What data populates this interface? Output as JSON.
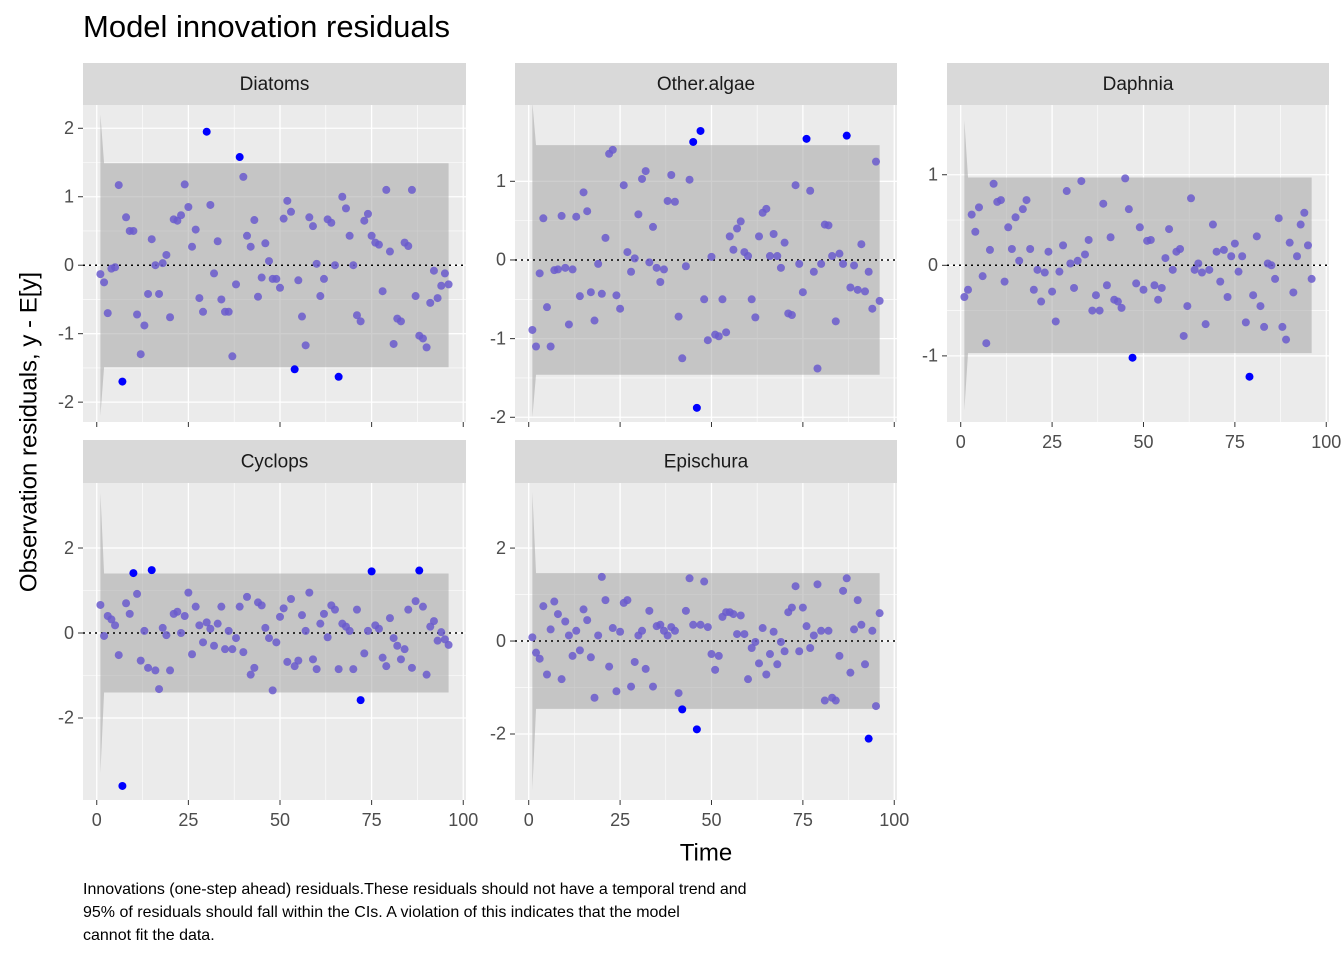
{
  "title": "Model innovation residuals",
  "y_label": "Observation residuals, y - E[y]",
  "x_label": "Time",
  "caption": [
    "Innovations (one-step ahead) residuals.These residuals should not have a temporal trend and",
    "95% of residuals should fall within the CIs. A violation of this indicates that the model",
    "cannot fit the data."
  ],
  "chart_data": [
    {
      "type": "scatter",
      "title": "Diatoms",
      "color": "#6a5acd",
      "outside_color": "#0000ff",
      "grid": true,
      "hline": 0,
      "xlim": [
        -3.75,
        100.75
      ],
      "xticks": [
        0,
        25,
        50,
        75,
        100
      ],
      "ylim": [
        -2.29,
        2.34
      ],
      "yticks": [
        -2,
        -1,
        0,
        1,
        2
      ],
      "band": {
        "x": [
          1,
          2,
          96
        ],
        "upper": [
          2.2,
          1.49,
          1.49
        ],
        "lower": [
          -2.2,
          -1.49,
          -1.49
        ]
      },
      "x": [
        1,
        2,
        3,
        4,
        5,
        6,
        7,
        8,
        9,
        10,
        11,
        12,
        13,
        14,
        15,
        16,
        17,
        18,
        19,
        20,
        21,
        22,
        23,
        24,
        25,
        26,
        27,
        28,
        29,
        30,
        31,
        32,
        33,
        34,
        35,
        36,
        37,
        38,
        39,
        40,
        41,
        42,
        43,
        44,
        45,
        46,
        47,
        48,
        49,
        50,
        51,
        52,
        53,
        54,
        55,
        56,
        57,
        58,
        59,
        60,
        61,
        62,
        63,
        64,
        65,
        66,
        67,
        68,
        69,
        70,
        71,
        72,
        73,
        74,
        75,
        76,
        77,
        78,
        79,
        80,
        81,
        82,
        83,
        84,
        85,
        86,
        87,
        88,
        89,
        90,
        91,
        92,
        93,
        94,
        95,
        96
      ],
      "values": [
        -0.13,
        -0.25,
        -0.7,
        -0.05,
        -0.03,
        1.17,
        -1.7,
        0.7,
        0.5,
        0.5,
        -0.72,
        -1.3,
        -0.88,
        -0.42,
        0.38,
        0.0,
        -0.42,
        0.03,
        0.15,
        -0.76,
        0.67,
        0.65,
        0.73,
        1.18,
        0.85,
        0.27,
        0.52,
        -0.48,
        -0.68,
        1.95,
        0.88,
        -0.12,
        0.35,
        -0.5,
        -0.68,
        -0.68,
        -1.33,
        -0.28,
        1.58,
        1.29,
        0.43,
        0.27,
        0.66,
        -0.46,
        -0.18,
        0.32,
        0.06,
        -0.2,
        -0.2,
        -0.33,
        0.68,
        0.94,
        0.78,
        -1.52,
        -0.22,
        -0.75,
        -1.17,
        0.7,
        0.57,
        0.02,
        -0.45,
        -0.2,
        0.67,
        0.62,
        0.0,
        -1.63,
        1.0,
        0.83,
        0.43,
        0.0,
        -0.73,
        -0.82,
        0.65,
        0.75,
        0.43,
        0.33,
        0.3,
        -0.38,
        1.1,
        0.2,
        -1.15,
        -0.78,
        -0.82,
        0.33,
        0.28,
        1.1,
        -0.45,
        -1.03,
        -1.07,
        -1.2,
        -0.55,
        -0.08,
        -0.48,
        -0.3,
        -0.12,
        -0.28
      ]
    },
    {
      "type": "scatter",
      "title": "Other.algae",
      "color": "#6a5acd",
      "outside_color": "#0000ff",
      "grid": true,
      "hline": 0,
      "xlim": [
        -3.75,
        100.75
      ],
      "xticks": [
        0,
        25,
        50,
        75,
        100
      ],
      "ylim": [
        -2.06,
        1.97
      ],
      "yticks": [
        -2,
        -1,
        0,
        1
      ],
      "band": {
        "x": [
          1,
          2,
          96
        ],
        "upper": [
          2.0,
          1.46,
          1.46
        ],
        "lower": [
          -2.0,
          -1.46,
          -1.46
        ]
      },
      "x": [
        1,
        2,
        3,
        4,
        5,
        6,
        7,
        8,
        9,
        10,
        11,
        12,
        13,
        14,
        15,
        16,
        17,
        18,
        19,
        20,
        21,
        22,
        23,
        24,
        25,
        26,
        27,
        28,
        29,
        30,
        31,
        32,
        33,
        34,
        35,
        36,
        37,
        38,
        39,
        40,
        41,
        42,
        43,
        44,
        45,
        46,
        47,
        48,
        49,
        50,
        51,
        52,
        53,
        54,
        55,
        56,
        57,
        58,
        59,
        60,
        61,
        62,
        63,
        64,
        65,
        66,
        67,
        68,
        69,
        70,
        71,
        72,
        73,
        74,
        75,
        76,
        77,
        78,
        79,
        80,
        81,
        82,
        83,
        84,
        85,
        86,
        87,
        88,
        89,
        90,
        91,
        92,
        93,
        94,
        95,
        96
      ],
      "values": [
        -0.89,
        -1.1,
        -0.17,
        0.53,
        -0.6,
        -1.1,
        -0.13,
        -0.12,
        0.56,
        -0.1,
        -0.82,
        -0.12,
        0.55,
        -0.46,
        0.86,
        0.62,
        -0.41,
        -0.77,
        -0.05,
        -0.43,
        0.28,
        1.35,
        1.4,
        -0.45,
        -0.62,
        0.95,
        0.1,
        -0.15,
        0.02,
        0.58,
        1.03,
        1.13,
        -0.03,
        0.42,
        -0.1,
        -0.28,
        -0.12,
        0.75,
        1.08,
        0.74,
        -0.72,
        -1.25,
        -0.08,
        1.02,
        1.5,
        -1.88,
        1.64,
        -0.5,
        -1.02,
        0.04,
        -0.95,
        -0.97,
        -0.5,
        -0.92,
        0.3,
        0.13,
        0.4,
        0.49,
        0.1,
        0.05,
        -0.5,
        -0.73,
        0.3,
        0.6,
        0.65,
        0.05,
        0.33,
        0.05,
        -0.1,
        0.22,
        -0.68,
        -0.7,
        0.95,
        -0.05,
        -0.41,
        1.54,
        0.88,
        -0.15,
        -1.38,
        -0.05,
        0.45,
        0.44,
        0.05,
        -0.78,
        0.08,
        -0.05,
        1.58,
        -0.35,
        -0.07,
        -0.38,
        0.2,
        -0.4,
        -0.15,
        -0.62,
        1.25,
        -0.52
      ]
    },
    {
      "type": "scatter",
      "title": "Daphnia",
      "color": "#6a5acd",
      "outside_color": "#0000ff",
      "grid": true,
      "hline": 0,
      "xlim": [
        -3.75,
        100.75
      ],
      "xticks": [
        0,
        25,
        50,
        75,
        100
      ],
      "ylim": [
        -1.73,
        1.77
      ],
      "yticks": [
        -1,
        0,
        1
      ],
      "band": {
        "x": [
          1,
          2,
          96
        ],
        "upper": [
          1.6,
          0.97,
          0.97
        ],
        "lower": [
          -1.6,
          -0.97,
          -0.97
        ]
      },
      "x": [
        1,
        2,
        3,
        4,
        5,
        6,
        7,
        8,
        9,
        10,
        11,
        12,
        13,
        14,
        15,
        16,
        17,
        18,
        19,
        20,
        21,
        22,
        23,
        24,
        25,
        26,
        27,
        28,
        29,
        30,
        31,
        32,
        33,
        34,
        35,
        36,
        37,
        38,
        39,
        40,
        41,
        42,
        43,
        44,
        45,
        46,
        47,
        48,
        49,
        50,
        51,
        52,
        53,
        54,
        55,
        56,
        57,
        58,
        59,
        60,
        61,
        62,
        63,
        64,
        65,
        66,
        67,
        68,
        69,
        70,
        71,
        72,
        73,
        74,
        75,
        76,
        77,
        78,
        79,
        80,
        81,
        82,
        83,
        84,
        85,
        86,
        87,
        88,
        89,
        90,
        91,
        92,
        93,
        94,
        95,
        96
      ],
      "values": [
        -0.35,
        -0.27,
        0.56,
        0.37,
        0.64,
        -0.12,
        -0.86,
        0.17,
        0.9,
        0.7,
        0.72,
        -0.18,
        0.42,
        0.18,
        0.53,
        0.05,
        0.62,
        0.72,
        0.18,
        -0.27,
        -0.05,
        -0.4,
        -0.08,
        0.15,
        -0.29,
        -0.62,
        -0.07,
        0.22,
        0.82,
        0.02,
        -0.25,
        0.05,
        0.93,
        0.12,
        0.28,
        -0.5,
        -0.33,
        -0.5,
        0.68,
        -0.22,
        0.31,
        -0.38,
        -0.4,
        -0.47,
        0.96,
        0.62,
        -1.02,
        -0.2,
        0.42,
        -0.27,
        0.27,
        0.28,
        -0.22,
        -0.38,
        -0.25,
        0.08,
        0.4,
        -0.05,
        0.15,
        0.18,
        -0.78,
        -0.45,
        0.74,
        -0.05,
        0.02,
        -0.08,
        -0.65,
        -0.05,
        0.45,
        0.15,
        -0.18,
        0.17,
        -0.35,
        0.1,
        0.24,
        -0.07,
        0.1,
        -0.63,
        -1.23,
        -0.33,
        0.32,
        -0.45,
        -0.68,
        0.02,
        0.0,
        -0.15,
        0.52,
        -0.68,
        -0.82,
        0.25,
        -0.3,
        0.1,
        0.45,
        0.58,
        0.22,
        -0.15
      ]
    },
    {
      "type": "scatter",
      "title": "Cyclops",
      "color": "#6a5acd",
      "outside_color": "#0000ff",
      "grid": true,
      "hline": 0,
      "xlim": [
        -3.75,
        100.75
      ],
      "xticks": [
        0,
        25,
        50,
        75,
        100
      ],
      "ylim": [
        -3.93,
        3.53
      ],
      "yticks": [
        -2,
        0,
        2
      ],
      "band": {
        "x": [
          1,
          2,
          96
        ],
        "upper": [
          3.3,
          1.4,
          1.4
        ],
        "lower": [
          -3.3,
          -1.4,
          -1.4
        ]
      },
      "x": [
        1,
        2,
        3,
        4,
        5,
        6,
        7,
        8,
        9,
        10,
        11,
        12,
        13,
        14,
        15,
        16,
        17,
        18,
        19,
        20,
        21,
        22,
        23,
        24,
        25,
        26,
        27,
        28,
        29,
        30,
        31,
        32,
        33,
        34,
        35,
        36,
        37,
        38,
        39,
        40,
        41,
        42,
        43,
        44,
        45,
        46,
        47,
        48,
        49,
        50,
        51,
        52,
        53,
        54,
        55,
        56,
        57,
        58,
        59,
        60,
        61,
        62,
        63,
        64,
        65,
        66,
        67,
        68,
        69,
        70,
        71,
        72,
        73,
        74,
        75,
        76,
        77,
        78,
        79,
        80,
        81,
        82,
        83,
        84,
        85,
        86,
        87,
        88,
        89,
        90,
        91,
        92,
        93,
        94,
        95,
        96
      ],
      "values": [
        0.66,
        -0.07,
        0.4,
        0.32,
        0.18,
        -0.52,
        -3.6,
        0.7,
        0.45,
        1.41,
        0.92,
        -0.65,
        0.05,
        -0.82,
        1.48,
        -0.88,
        -1.32,
        0.12,
        -0.05,
        -0.88,
        0.45,
        0.5,
        0.0,
        0.4,
        0.95,
        -0.5,
        0.62,
        0.18,
        -0.22,
        0.25,
        0.1,
        -0.3,
        0.22,
        0.62,
        -0.38,
        0.05,
        -0.38,
        -0.12,
        0.62,
        -0.45,
        0.85,
        -0.98,
        -0.82,
        0.72,
        0.65,
        0.12,
        -0.12,
        -1.35,
        -0.22,
        0.38,
        0.58,
        -0.68,
        0.8,
        -0.78,
        -0.65,
        0.42,
        0.05,
        0.95,
        -0.62,
        -0.85,
        0.22,
        0.45,
        -0.1,
        0.65,
        0.55,
        -0.85,
        0.22,
        0.15,
        0.05,
        -0.85,
        0.55,
        -1.58,
        -0.48,
        0.05,
        1.45,
        0.18,
        0.1,
        -0.58,
        -0.78,
        0.35,
        -0.12,
        -0.3,
        -0.62,
        -0.38,
        0.55,
        -0.82,
        0.75,
        1.47,
        0.62,
        -0.98,
        0.15,
        0.28,
        -0.18,
        0.02,
        -0.15,
        -0.28
      ]
    },
    {
      "type": "scatter",
      "title": "Epischura",
      "color": "#6a5acd",
      "outside_color": "#0000ff",
      "grid": true,
      "hline": 0,
      "xlim": [
        -3.75,
        100.75
      ],
      "xticks": [
        0,
        25,
        50,
        75,
        100
      ],
      "ylim": [
        -3.42,
        3.4
      ],
      "yticks": [
        -2,
        0,
        2
      ],
      "band": {
        "x": [
          1,
          2,
          96
        ],
        "upper": [
          3.2,
          1.46,
          1.46
        ],
        "lower": [
          -3.2,
          -1.46,
          -1.46
        ]
      },
      "x": [
        1,
        2,
        3,
        4,
        5,
        6,
        7,
        8,
        9,
        10,
        11,
        12,
        13,
        14,
        15,
        16,
        17,
        18,
        19,
        20,
        21,
        22,
        23,
        24,
        25,
        26,
        27,
        28,
        29,
        30,
        31,
        32,
        33,
        34,
        35,
        36,
        37,
        38,
        39,
        40,
        41,
        42,
        43,
        44,
        45,
        46,
        47,
        48,
        49,
        50,
        51,
        52,
        53,
        54,
        55,
        56,
        57,
        58,
        59,
        60,
        61,
        62,
        63,
        64,
        65,
        66,
        67,
        68,
        69,
        70,
        71,
        72,
        73,
        74,
        75,
        76,
        77,
        78,
        79,
        80,
        81,
        82,
        83,
        84,
        85,
        86,
        87,
        88,
        89,
        90,
        91,
        92,
        93,
        94,
        95,
        96
      ],
      "values": [
        0.08,
        -0.25,
        -0.38,
        0.75,
        -0.72,
        0.25,
        0.85,
        0.58,
        -0.82,
        0.42,
        0.12,
        -0.32,
        0.22,
        -0.2,
        0.68,
        0.45,
        -0.35,
        -1.22,
        0.12,
        1.38,
        0.88,
        -0.55,
        0.28,
        -1.08,
        0.2,
        0.82,
        0.88,
        -0.98,
        -0.45,
        0.12,
        0.22,
        -0.6,
        0.65,
        -0.98,
        0.32,
        0.35,
        0.22,
        0.12,
        0.3,
        0.22,
        -1.12,
        -1.47,
        0.65,
        1.35,
        0.35,
        -1.9,
        0.35,
        1.28,
        0.3,
        -0.28,
        -0.62,
        -0.32,
        0.52,
        0.62,
        0.62,
        0.58,
        0.15,
        0.55,
        0.15,
        -0.82,
        -0.15,
        -0.02,
        -0.48,
        0.28,
        -0.72,
        -0.28,
        0.2,
        -0.5,
        -0.02,
        -0.22,
        0.62,
        0.72,
        1.18,
        -0.22,
        0.72,
        0.32,
        -0.15,
        0.12,
        1.22,
        0.22,
        -1.28,
        0.22,
        -1.22,
        -1.28,
        -0.32,
        1.08,
        1.35,
        -0.68,
        0.25,
        0.88,
        0.35,
        -0.5,
        -2.1,
        0.22,
        -1.4,
        0.6
      ]
    }
  ]
}
